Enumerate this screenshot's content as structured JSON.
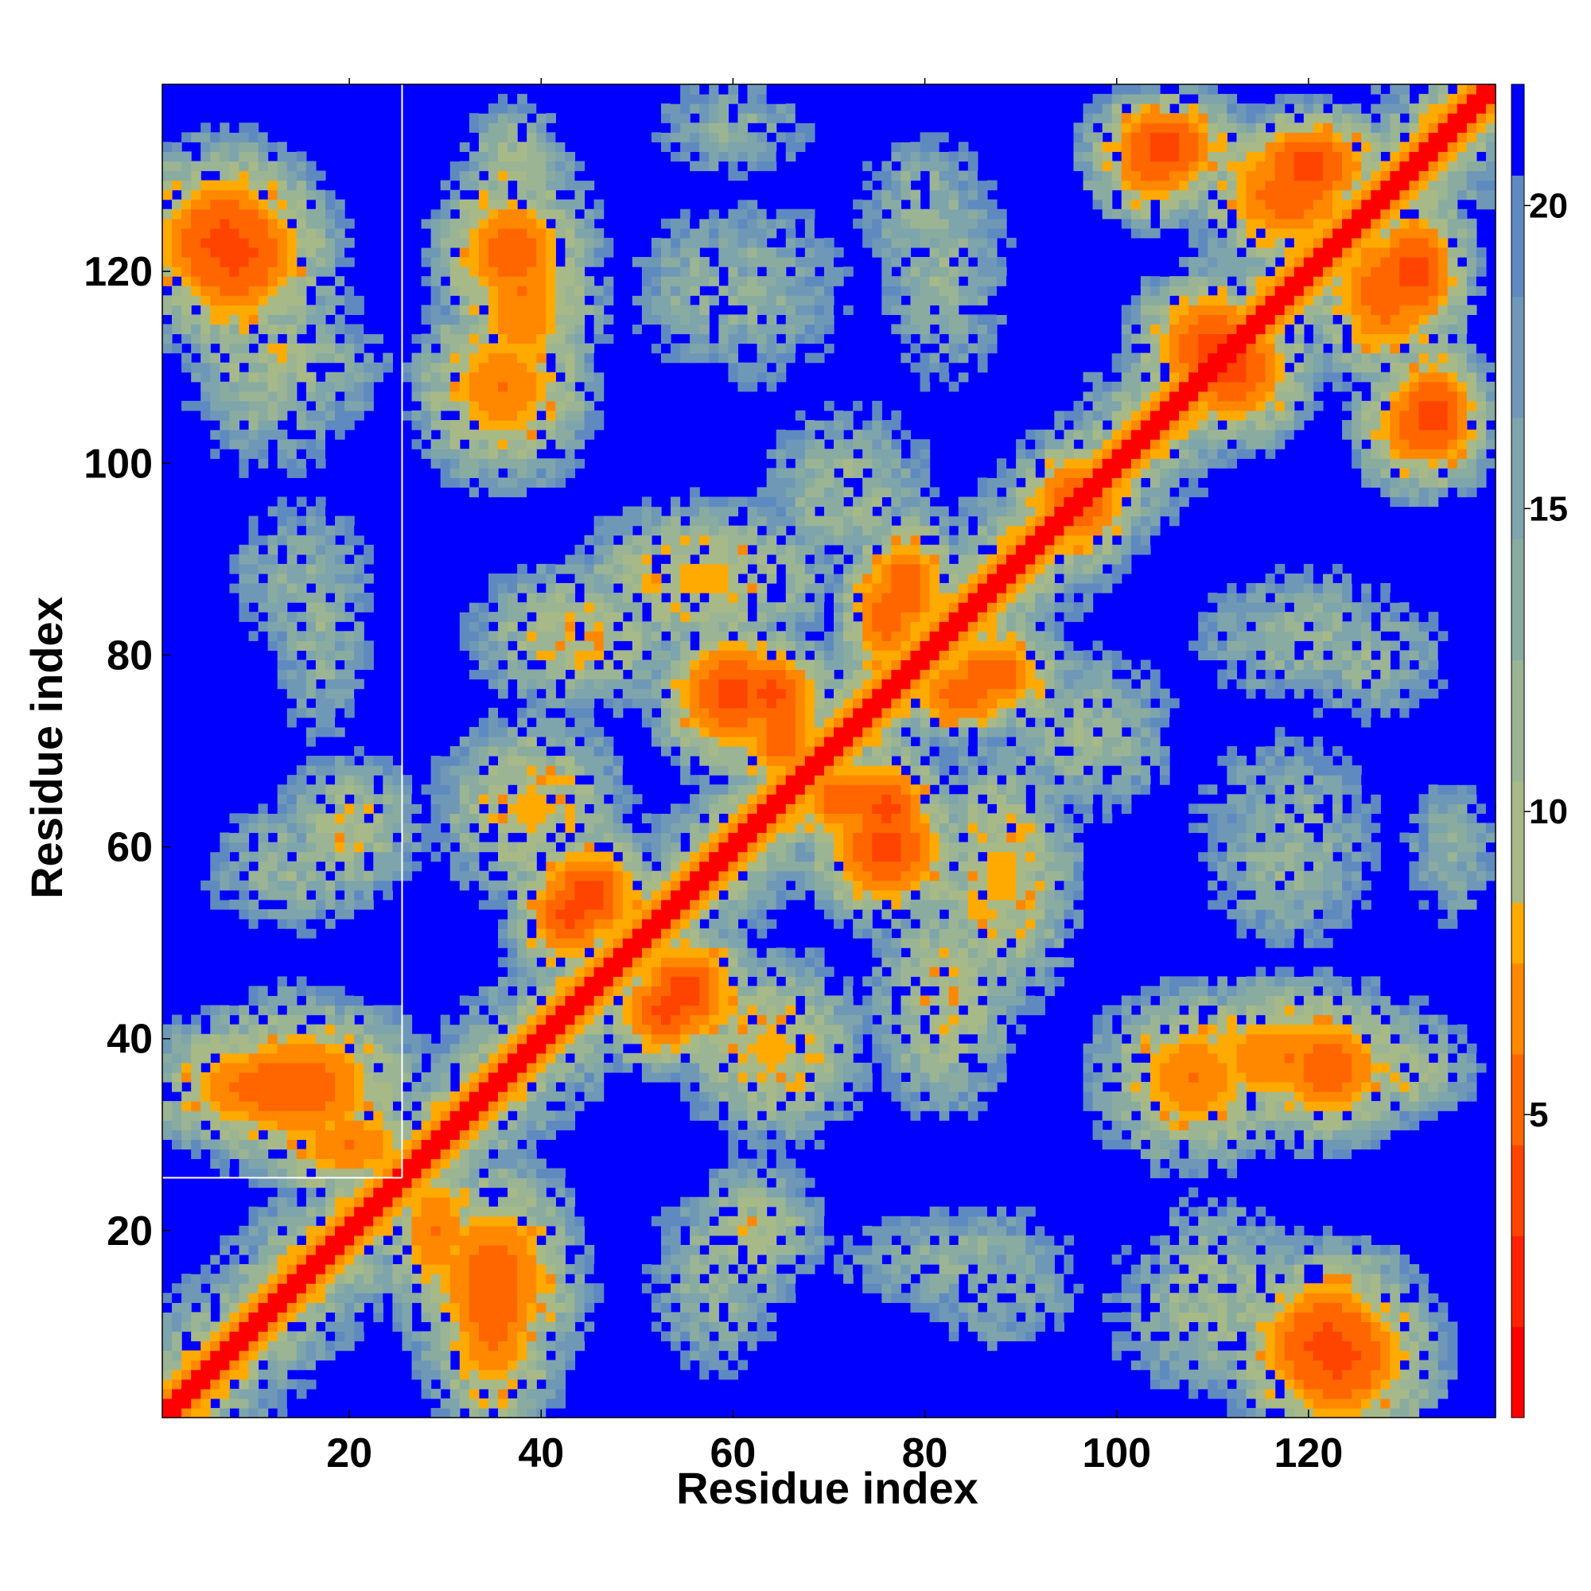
{
  "chart_data": {
    "type": "heatmap",
    "title": "",
    "xlabel": "Residue index",
    "ylabel": "Residue index",
    "n_residues": 139,
    "xlim": [
      1,
      139
    ],
    "ylim": [
      1,
      139
    ],
    "x_ticks": [
      "20",
      "40",
      "60",
      "80",
      "100",
      "120"
    ],
    "y_ticks": [
      "20",
      "40",
      "60",
      "80",
      "100",
      "120"
    ],
    "x_tick_values": [
      20,
      40,
      60,
      80,
      100,
      120
    ],
    "y_tick_values": [
      20,
      40,
      60,
      80,
      100,
      120
    ],
    "colorbar": {
      "ticks": [
        "5",
        "10",
        "15",
        "20"
      ],
      "tick_values": [
        5,
        10,
        15,
        20
      ],
      "range": [
        0,
        22
      ],
      "levels": [
        {
          "max": 1.5,
          "color": "#ff0000"
        },
        {
          "max": 3.0,
          "color": "#ff2200"
        },
        {
          "max": 4.5,
          "color": "#ff4400"
        },
        {
          "max": 6.0,
          "color": "#ff6600"
        },
        {
          "max": 7.5,
          "color": "#ff8800"
        },
        {
          "max": 8.5,
          "color": "#ffaa00"
        },
        {
          "max": 10.5,
          "color": "#a8b988"
        },
        {
          "max": 12.5,
          "color": "#9bb494"
        },
        {
          "max": 14.5,
          "color": "#8aaca0"
        },
        {
          "max": 16.5,
          "color": "#7ea4ac"
        },
        {
          "max": 18.5,
          "color": "#6f98b6"
        },
        {
          "max": 20.5,
          "color": "#5f8ac0"
        },
        {
          "max": 22.0,
          "color": "#0000ff"
        }
      ]
    },
    "gap_residue": 26,
    "contact_blobs": [
      {
        "x": 7,
        "y": 123,
        "rx": 10,
        "ry": 10,
        "min": 4
      },
      {
        "x": 12,
        "y": 112,
        "rx": 10,
        "ry": 14,
        "min": 11
      },
      {
        "x": 37,
        "y": 122,
        "rx": 8,
        "ry": 9,
        "min": 5
      },
      {
        "x": 36,
        "y": 108,
        "rx": 9,
        "ry": 10,
        "min": 6
      },
      {
        "x": 37,
        "y": 130,
        "rx": 6,
        "ry": 8,
        "min": 10
      },
      {
        "x": 15,
        "y": 88,
        "rx": 9,
        "ry": 10,
        "min": 14
      },
      {
        "x": 15,
        "y": 58,
        "rx": 12,
        "ry": 8,
        "min": 13
      },
      {
        "x": 12,
        "y": 35,
        "rx": 14,
        "ry": 7,
        "min": 5
      },
      {
        "x": 20,
        "y": 29,
        "rx": 10,
        "ry": 6,
        "min": 6
      },
      {
        "x": 35,
        "y": 15,
        "rx": 9,
        "ry": 12,
        "min": 5
      },
      {
        "x": 45,
        "y": 55,
        "rx": 7,
        "ry": 7,
        "min": 4
      },
      {
        "x": 53,
        "y": 43,
        "rx": 7,
        "ry": 6,
        "min": 4
      },
      {
        "x": 39,
        "y": 64,
        "rx": 10,
        "ry": 10,
        "min": 8
      },
      {
        "x": 44,
        "y": 82,
        "rx": 12,
        "ry": 8,
        "min": 9
      },
      {
        "x": 60,
        "y": 76,
        "rx": 8,
        "ry": 8,
        "min": 4
      },
      {
        "x": 65,
        "y": 72,
        "rx": 6,
        "ry": 8,
        "min": 5
      },
      {
        "x": 76,
        "y": 64,
        "rx": 6,
        "ry": 7,
        "min": 4
      },
      {
        "x": 78,
        "y": 87,
        "rx": 6,
        "ry": 8,
        "min": 5
      },
      {
        "x": 84,
        "y": 76,
        "rx": 8,
        "ry": 5,
        "min": 5
      },
      {
        "x": 88,
        "y": 57,
        "rx": 8,
        "ry": 14,
        "min": 8
      },
      {
        "x": 72,
        "y": 97,
        "rx": 10,
        "ry": 10,
        "min": 12
      },
      {
        "x": 80,
        "y": 126,
        "rx": 8,
        "ry": 10,
        "min": 13
      },
      {
        "x": 62,
        "y": 118,
        "rx": 12,
        "ry": 12,
        "min": 14
      },
      {
        "x": 62,
        "y": 20,
        "rx": 8,
        "ry": 8,
        "min": 10
      },
      {
        "x": 83,
        "y": 17,
        "rx": 14,
        "ry": 6,
        "min": 13
      },
      {
        "x": 96,
        "y": 96,
        "rx": 7,
        "ry": 6,
        "min": 4
      },
      {
        "x": 105,
        "y": 133,
        "rx": 8,
        "ry": 6,
        "min": 4
      },
      {
        "x": 118,
        "y": 128,
        "rx": 10,
        "ry": 8,
        "min": 5
      },
      {
        "x": 112,
        "y": 110,
        "rx": 8,
        "ry": 8,
        "min": 4
      },
      {
        "x": 131,
        "y": 120,
        "rx": 6,
        "ry": 9,
        "min": 4
      },
      {
        "x": 131,
        "y": 104,
        "rx": 6,
        "ry": 7,
        "min": 5
      },
      {
        "x": 118,
        "y": 38,
        "rx": 15,
        "ry": 8,
        "min": 6
      },
      {
        "x": 122,
        "y": 8,
        "rx": 10,
        "ry": 10,
        "min": 4
      },
      {
        "x": 110,
        "y": 15,
        "rx": 8,
        "ry": 10,
        "min": 12
      },
      {
        "x": 135,
        "y": 60,
        "rx": 6,
        "ry": 10,
        "min": 14
      },
      {
        "x": 118,
        "y": 58,
        "rx": 10,
        "ry": 10,
        "min": 13
      },
      {
        "x": 120,
        "y": 82,
        "rx": 14,
        "ry": 8,
        "min": 13
      }
    ]
  }
}
